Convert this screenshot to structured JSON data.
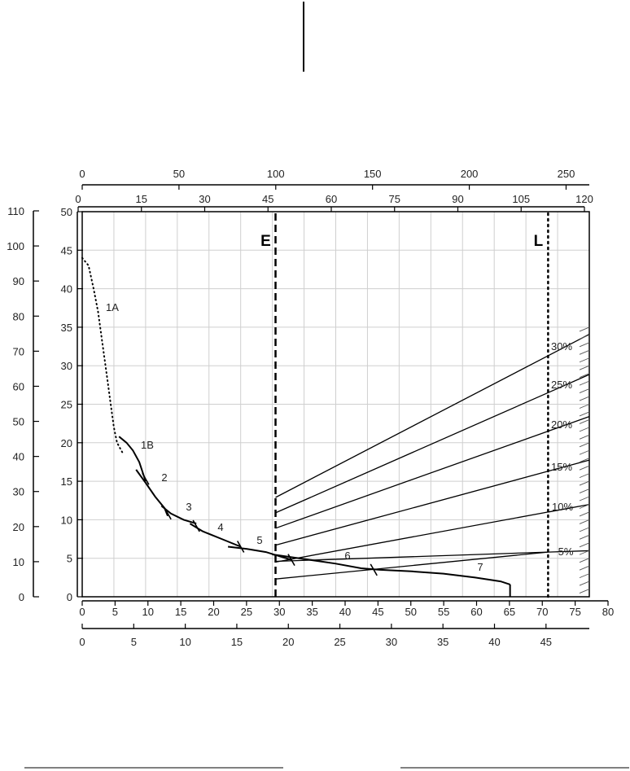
{
  "chart_data": {
    "type": "line",
    "title": "",
    "grid": true,
    "axes": {
      "top1": {
        "ticks": [
          "0",
          "50",
          "100",
          "150",
          "200",
          "250"
        ],
        "range": [
          0,
          262
        ]
      },
      "top2": {
        "ticks": [
          "0",
          "15",
          "30",
          "45",
          "60",
          "75",
          "90",
          "105",
          "120"
        ],
        "range": [
          0,
          120
        ]
      },
      "left_outer": {
        "ticks": [
          "0",
          "10",
          "20",
          "30",
          "40",
          "50",
          "60",
          "70",
          "80",
          "90",
          "100",
          "110"
        ],
        "range": [
          0,
          110
        ]
      },
      "left_inner": {
        "ticks": [
          "0",
          "5",
          "10",
          "15",
          "20",
          "25",
          "30",
          "35",
          "40",
          "45",
          "50"
        ],
        "range": [
          0,
          50
        ]
      },
      "bottom1": {
        "ticks": [
          "0",
          "5",
          "10",
          "15",
          "20",
          "25",
          "30",
          "35",
          "40",
          "45",
          "50",
          "55",
          "60",
          "65",
          "70",
          "75",
          "80"
        ],
        "range": [
          0,
          80
        ]
      },
      "bottom2": {
        "ticks": [
          "0",
          "5",
          "10",
          "15",
          "20",
          "25",
          "30",
          "35",
          "40",
          "45"
        ],
        "range": [
          0,
          49.2
        ]
      }
    },
    "vertical_markers": [
      {
        "label": "E",
        "x": 30.5,
        "style": "dashed"
      },
      {
        "label": "L",
        "x": 73.5,
        "style": "dotted"
      }
    ],
    "series": [
      {
        "label": "1A",
        "style": "dotted",
        "x": [
          0,
          1,
          1.8,
          2.5,
          3,
          3.5,
          4,
          4.5,
          5,
          5.5,
          6.5
        ],
        "y": [
          44,
          43,
          40,
          37,
          34,
          31,
          28,
          25,
          22,
          20,
          18.5
        ]
      },
      {
        "label": "1B",
        "style": "solid",
        "x": [
          5.8,
          7,
          8,
          9,
          10
        ],
        "y": [
          20.8,
          20,
          19,
          17.5,
          15
        ]
      },
      {
        "label": "2",
        "style": "solid",
        "x": [
          8.5,
          10,
          11.5,
          13,
          13.5
        ],
        "y": [
          16.5,
          14.8,
          13,
          11.5,
          10.5
        ]
      },
      {
        "label": "3",
        "style": "solid",
        "x": [
          12.5,
          14,
          16,
          18
        ],
        "y": [
          11.8,
          10.8,
          10,
          9.5
        ]
      },
      {
        "label": "4",
        "style": "solid",
        "x": [
          17,
          19,
          22,
          25
        ],
        "y": [
          9.5,
          8.5,
          7.5,
          6.5
        ]
      },
      {
        "label": "5",
        "style": "solid",
        "x": [
          23,
          26,
          29,
          31,
          33
        ],
        "y": [
          6.5,
          6.2,
          5.8,
          5.3,
          4.8
        ]
      },
      {
        "label": "6",
        "style": "solid",
        "x": [
          30,
          35,
          40,
          44,
          47,
          52,
          57,
          62,
          66,
          67.5
        ],
        "y": [
          5.5,
          4.9,
          4.3,
          3.7,
          3.5,
          3.3,
          3.0,
          2.5,
          2.0,
          1.6
        ]
      },
      {
        "label": "7",
        "style": "solid",
        "x": [
          30.5,
          73.5
        ],
        "y": [
          2.3,
          5.8
        ]
      },
      {
        "label": "5%",
        "style": "solid",
        "x": [
          30.5,
          73.5
        ],
        "y": [
          4.6,
          5.8
        ]
      },
      {
        "label": "10%",
        "style": "solid",
        "x": [
          30.5,
          73.5
        ],
        "y": [
          4.5,
          11.0
        ]
      },
      {
        "label": "15%",
        "style": "solid",
        "x": [
          30.5,
          73.5
        ],
        "y": [
          6.7,
          16.3
        ]
      },
      {
        "label": "20%",
        "style": "solid",
        "x": [
          30.5,
          73.5
        ],
        "y": [
          8.9,
          21.5
        ]
      },
      {
        "label": "25%",
        "style": "solid",
        "x": [
          30.5,
          73.5
        ],
        "y": [
          10.9,
          26.5
        ]
      },
      {
        "label": "30%",
        "style": "solid",
        "x": [
          30.5,
          73.5
        ],
        "y": [
          12.9,
          31.3
        ]
      }
    ]
  }
}
